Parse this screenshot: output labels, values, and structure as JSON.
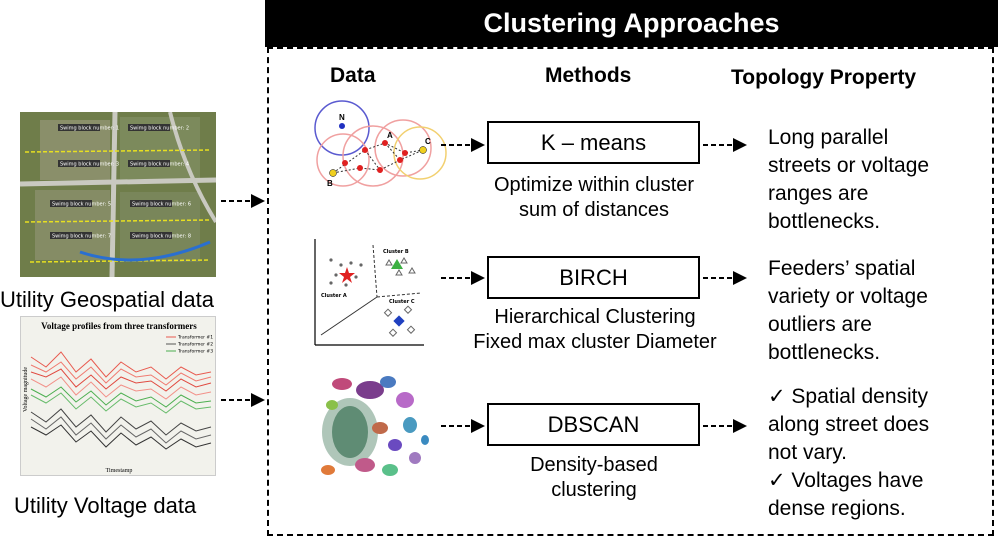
{
  "header": {
    "title": "Clustering Approaches"
  },
  "columns": {
    "data": "Data",
    "methods": "Methods",
    "topology": "Topology Property"
  },
  "inputs": [
    {
      "label": "Utility Geospatial data",
      "image_icon": "satellite-map-thumbnail"
    },
    {
      "label": "Utility Voltage data",
      "image_icon": "voltage-profile-chart-thumbnail",
      "chart_title": "Voltage profiles from three transformers",
      "legend": [
        "Transformer #1",
        "Transformer #2",
        "Transformer #3"
      ],
      "ylabel": "Voltage magnitude",
      "xlabel": "Timestamp"
    }
  ],
  "kmeans_labels": {
    "n": "N",
    "a": "A",
    "b": "B",
    "c": "C"
  },
  "birch_labels": {
    "b": "Cluster B",
    "a": "Cluster A",
    "c": "Cluster C"
  },
  "map_labels": [
    "Swimg block number: 1",
    "Swimg block number: 2",
    "Swimg block number: 3",
    "Swimg block number: 4",
    "Swimg block number: 5",
    "Swimg block number: 6",
    "Swimg block number: 7",
    "Swimg block number: 8"
  ],
  "methods": [
    {
      "name": "K – means",
      "description": [
        "Optimize within cluster",
        "sum of distances"
      ],
      "topology": [
        "Long parallel",
        "streets or voltage",
        "ranges are",
        "bottlenecks."
      ]
    },
    {
      "name": "BIRCH",
      "description": [
        "Hierarchical Clustering",
        "Fixed max cluster Diameter"
      ],
      "topology": [
        "Feeders’ spatial",
        "variety or voltage",
        "outliers are",
        "bottlenecks."
      ]
    },
    {
      "name": "DBSCAN",
      "description": [
        "Density-based",
        "clustering"
      ],
      "topology": [
        "✓ Spatial density",
        "along street does",
        "not vary.",
        "✓ Voltages have",
        "dense regions."
      ]
    }
  ],
  "colors": {
    "header_bg": "#000000",
    "header_text": "#ffffff",
    "kmeans_red": "#e02020",
    "birch_green": "#3cb043",
    "birch_blue": "#2040c0"
  }
}
